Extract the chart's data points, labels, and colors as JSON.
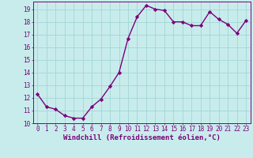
{
  "x": [
    0,
    1,
    2,
    3,
    4,
    5,
    6,
    7,
    8,
    9,
    10,
    11,
    12,
    13,
    14,
    15,
    16,
    17,
    18,
    19,
    20,
    21,
    22,
    23
  ],
  "y": [
    12.3,
    11.3,
    11.1,
    10.6,
    10.4,
    10.4,
    11.3,
    11.9,
    12.9,
    14.0,
    16.7,
    18.4,
    19.3,
    19.0,
    18.9,
    18.0,
    18.0,
    17.7,
    17.7,
    18.8,
    18.2,
    17.8,
    17.1,
    18.1
  ],
  "line_color": "#7B007B",
  "marker": "D",
  "markersize": 2.2,
  "linewidth": 1.0,
  "bg_color": "#c8ecec",
  "grid_color": "#a8d8d8",
  "xlabel": "Windchill (Refroidissement éolien,°C)",
  "ylim": [
    10,
    19.6
  ],
  "xlim": [
    -0.5,
    23.5
  ],
  "yticks": [
    10,
    11,
    12,
    13,
    14,
    15,
    16,
    17,
    18,
    19
  ],
  "xticks": [
    0,
    1,
    2,
    3,
    4,
    5,
    6,
    7,
    8,
    9,
    10,
    11,
    12,
    13,
    14,
    15,
    16,
    17,
    18,
    19,
    20,
    21,
    22,
    23
  ],
  "tick_color": "#7B007B",
  "label_color": "#7B007B",
  "tick_fontsize": 5.5,
  "xlabel_fontsize": 6.5
}
